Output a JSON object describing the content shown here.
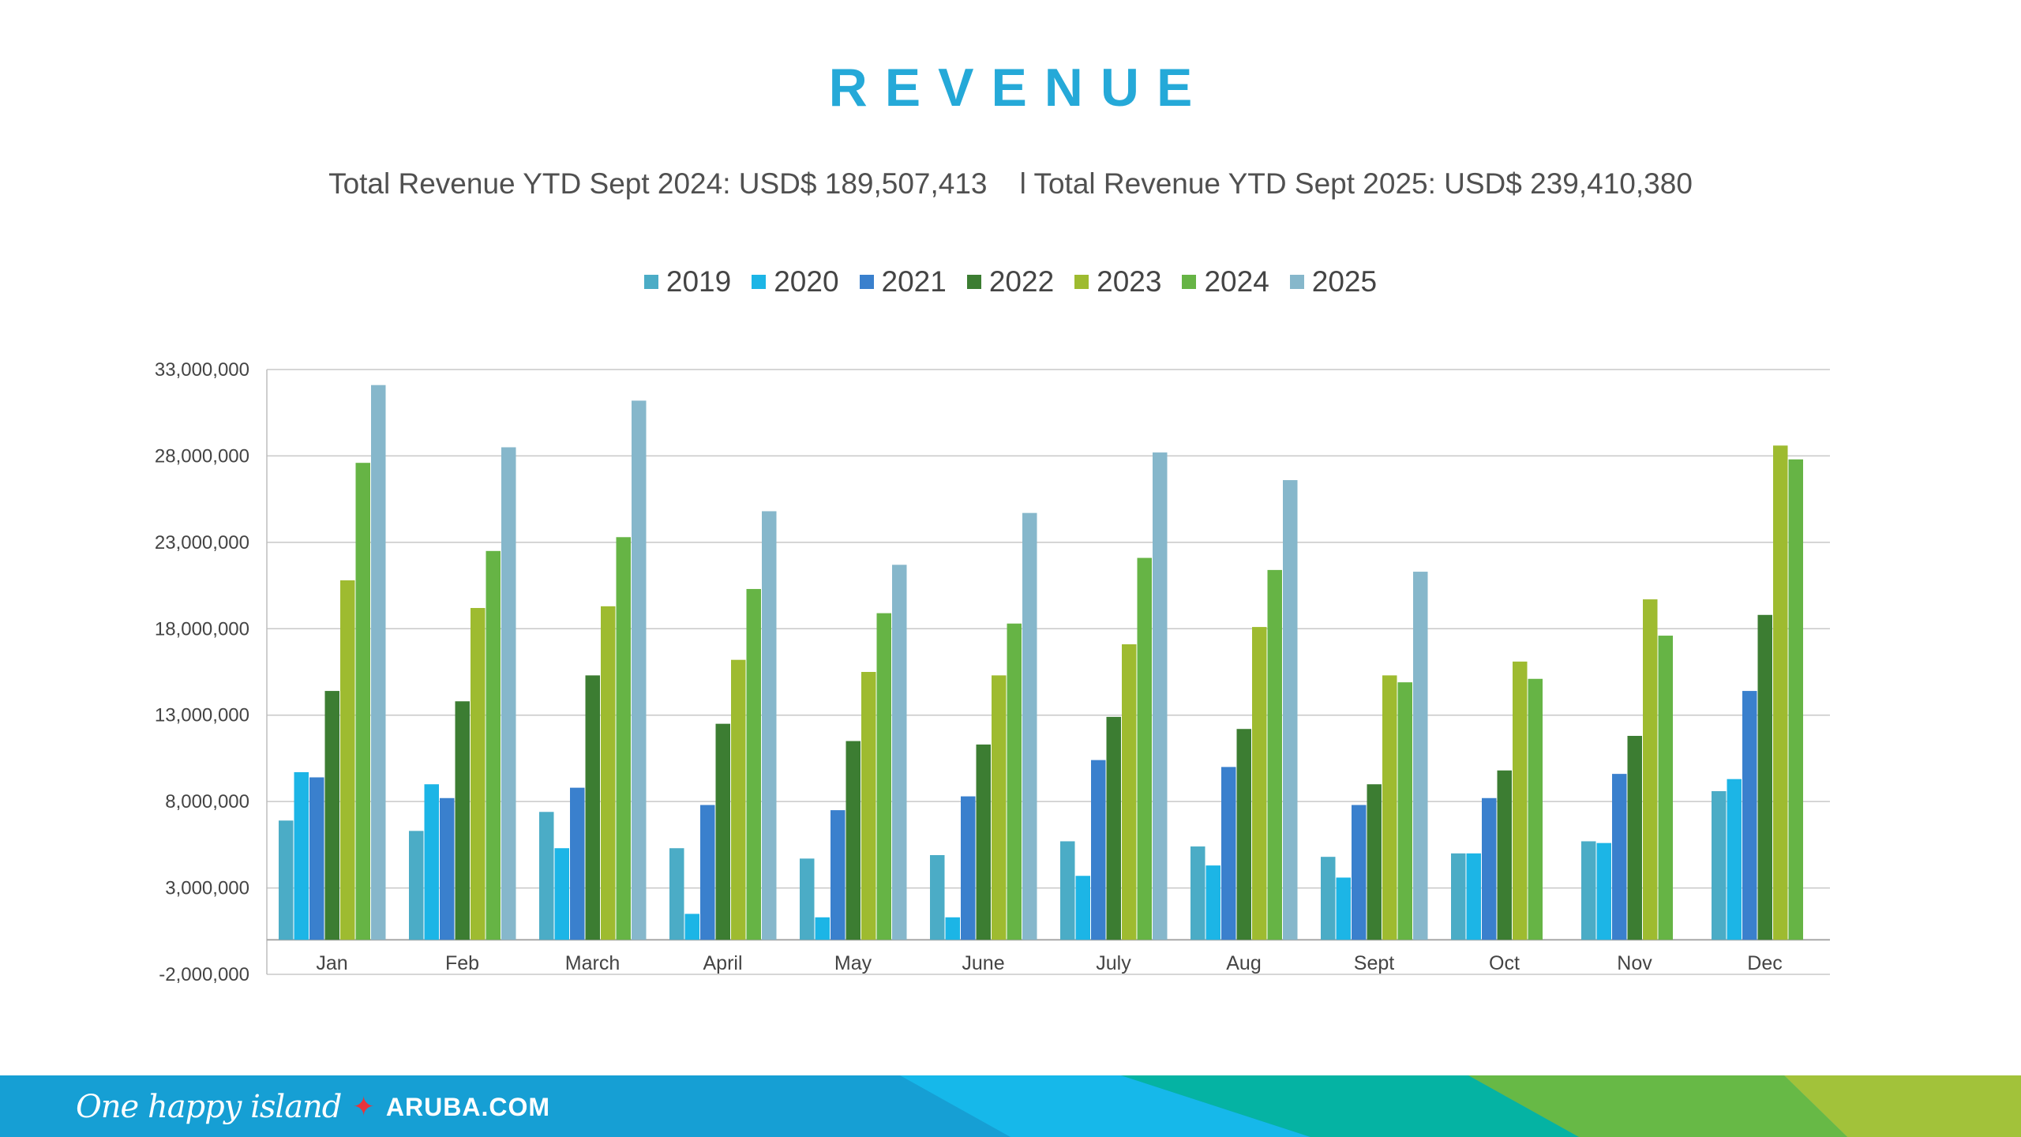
{
  "chart_data": {
    "type": "bar",
    "title": "REVENUE",
    "subtitle": "Total Revenue YTD Sept 2024: USD$ 189,507,413    l Total Revenue YTD Sept 2025: USD$ 239,410,380",
    "xlabel": "",
    "ylabel": "",
    "ylim": [
      -2000000,
      33000000
    ],
    "yticks": [
      33000000,
      28000000,
      23000000,
      18000000,
      13000000,
      8000000,
      3000000,
      -2000000
    ],
    "ytick_labels": [
      "33,000,000",
      "28,000,000",
      "23,000,000",
      "18,000,000",
      "13,000,000",
      "8,000,000",
      "3,000,000",
      "-2,000,000"
    ],
    "grid": true,
    "legend_position": "top-center",
    "categories": [
      "Jan",
      "Feb",
      "March",
      "April",
      "May",
      "June",
      "July",
      "Aug",
      "Sept",
      "Oct",
      "Nov",
      "Dec"
    ],
    "series": [
      {
        "name": "2019",
        "color": "#4bacc6",
        "values": [
          6900000,
          6300000,
          7400000,
          5300000,
          4700000,
          4900000,
          5700000,
          5400000,
          4800000,
          5000000,
          5700000,
          8600000
        ]
      },
      {
        "name": "2020",
        "color": "#1cb5e6",
        "values": [
          9700000,
          9000000,
          5300000,
          1500000,
          1300000,
          1300000,
          3700000,
          4300000,
          3600000,
          5000000,
          5600000,
          9300000
        ]
      },
      {
        "name": "2021",
        "color": "#3a80cd",
        "values": [
          9400000,
          8200000,
          8800000,
          7800000,
          7500000,
          8300000,
          10400000,
          10000000,
          7800000,
          8200000,
          9600000,
          14400000
        ]
      },
      {
        "name": "2022",
        "color": "#3c7d32",
        "values": [
          14400000,
          13800000,
          15300000,
          12500000,
          11500000,
          11300000,
          12900000,
          12200000,
          9000000,
          9800000,
          11800000,
          18800000
        ]
      },
      {
        "name": "2023",
        "color": "#9ebb30",
        "values": [
          20800000,
          19200000,
          19300000,
          16200000,
          15500000,
          15300000,
          17100000,
          18100000,
          15300000,
          16100000,
          19700000,
          28600000
        ]
      },
      {
        "name": "2024",
        "color": "#66b445",
        "values": [
          27600000,
          22500000,
          23300000,
          20300000,
          18900000,
          18300000,
          22100000,
          21400000,
          14900000,
          15100000,
          17600000,
          27800000
        ]
      },
      {
        "name": "2025",
        "color": "#86b7cb",
        "values": [
          32100000,
          28500000,
          31200000,
          24800000,
          21700000,
          24700000,
          28200000,
          26600000,
          21300000,
          null,
          null,
          null
        ]
      }
    ]
  },
  "footer": {
    "tagline": "One happy island",
    "star": "✦",
    "site": "ARUBA.COM"
  }
}
